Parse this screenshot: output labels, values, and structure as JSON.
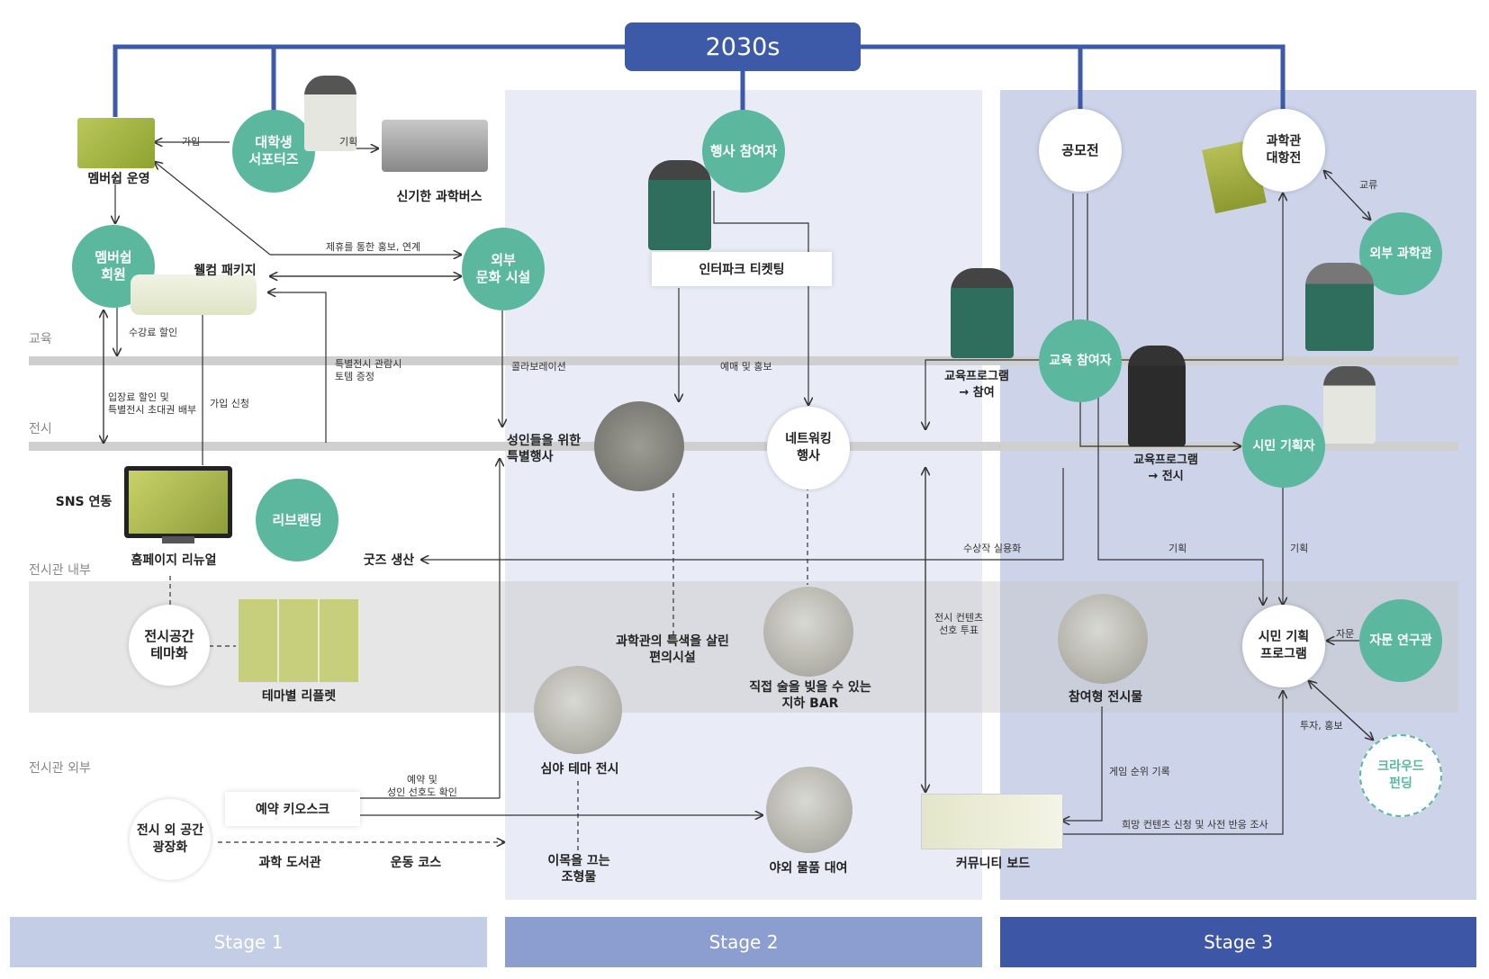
{
  "title": "2030s",
  "stages": [
    "Stage 1",
    "Stage 2",
    "Stage 3"
  ],
  "zones": {
    "education": "교육",
    "exhibition": "전시",
    "inside": "전시관 내부",
    "outside": "전시관 외부"
  },
  "nodes": {
    "student_supporters": "대학생\n서포터즈",
    "membership_operation": "멤버쉽 운영",
    "science_bus": "신기한 과학버스",
    "membership_member": "멤버쉽\n회원",
    "welcome_package": "웰컴 패키지",
    "external_culture": "외부\n문화 시설",
    "event_participant": "행사 참여자",
    "interpark": "인터파크 티켓팅",
    "contest": "공모전",
    "science_vs": "과학관\n대항전",
    "external_science": "외부 과학관",
    "edu_participant": "교육 참여자",
    "edu_program_participation": "교육프로그램\n→ 참여",
    "edu_program_exhibition": "교육프로그램\n→ 전시",
    "citizen_planner": "시민 기획자",
    "adult_event": "성인들을 위한\n특별행사",
    "networking_event": "네트워킹\n행사",
    "sns": "SNS 연동",
    "homepage_renewal": "홈페이지 리뉴얼",
    "rebranding": "리브랜딩",
    "goods": "굿즈 생산",
    "space_theme": "전시공간\n테마화",
    "theme_leaflet": "테마별 리플렛",
    "facilities": "과학관의 특색을 살린\n편의시설",
    "bar": "직접 술을 빚을 수 있는\n지하 BAR",
    "participatory": "참여형 전시물",
    "citizen_program": "시민 기획\n프로그램",
    "advisory": "자문 연구관",
    "crowdfunding": "크라우드\n펀딩",
    "night_exhibition": "심야 테마 전시",
    "kiosk": "예약 키오스크",
    "plaza": "전시 외 공간\n광장화",
    "science_library": "과학 도서관",
    "exercise_course": "운동 코스",
    "sculpture": "이목을 끄는\n조형물",
    "outdoor_rental": "야외 물품 대여",
    "community_board": "커뮤니티 보드"
  },
  "edges": {
    "join": "가입",
    "plan": "기획",
    "partnership": "제휴를 통한 홍보, 연계",
    "tuition_discount": "수강료 할인",
    "special_token": "특별전시 관람시\n토템 증정",
    "collaboration": "콜라보레이션",
    "presale": "예매 및 홍보",
    "admission_discount": "입장료 할인 및\n특별전시 초대권 배부",
    "join_apply": "가입 신청",
    "exchange": "교류",
    "winner_commercial": "수상작 실용화",
    "plan2": "기획",
    "plan3": "기획",
    "content_vote": "전시 컨텐츠\n선호 투표",
    "advise": "자문",
    "invest": "투자, 홍보",
    "game_rank": "게임 순위 기록",
    "reserve": "예약 및\n성인 선호도 확인",
    "wish_content": "희망 컨텐츠 신청 및 사전 반응 조사"
  },
  "colors": {
    "teal": "#5bb89e",
    "navy": "#3d5aa8",
    "stage1": "#c4cde6",
    "stage2": "#8c9dd0",
    "stage3": "#3e56a6",
    "panel2": "#e9ecf6",
    "panel3": "#cdd4ea"
  }
}
